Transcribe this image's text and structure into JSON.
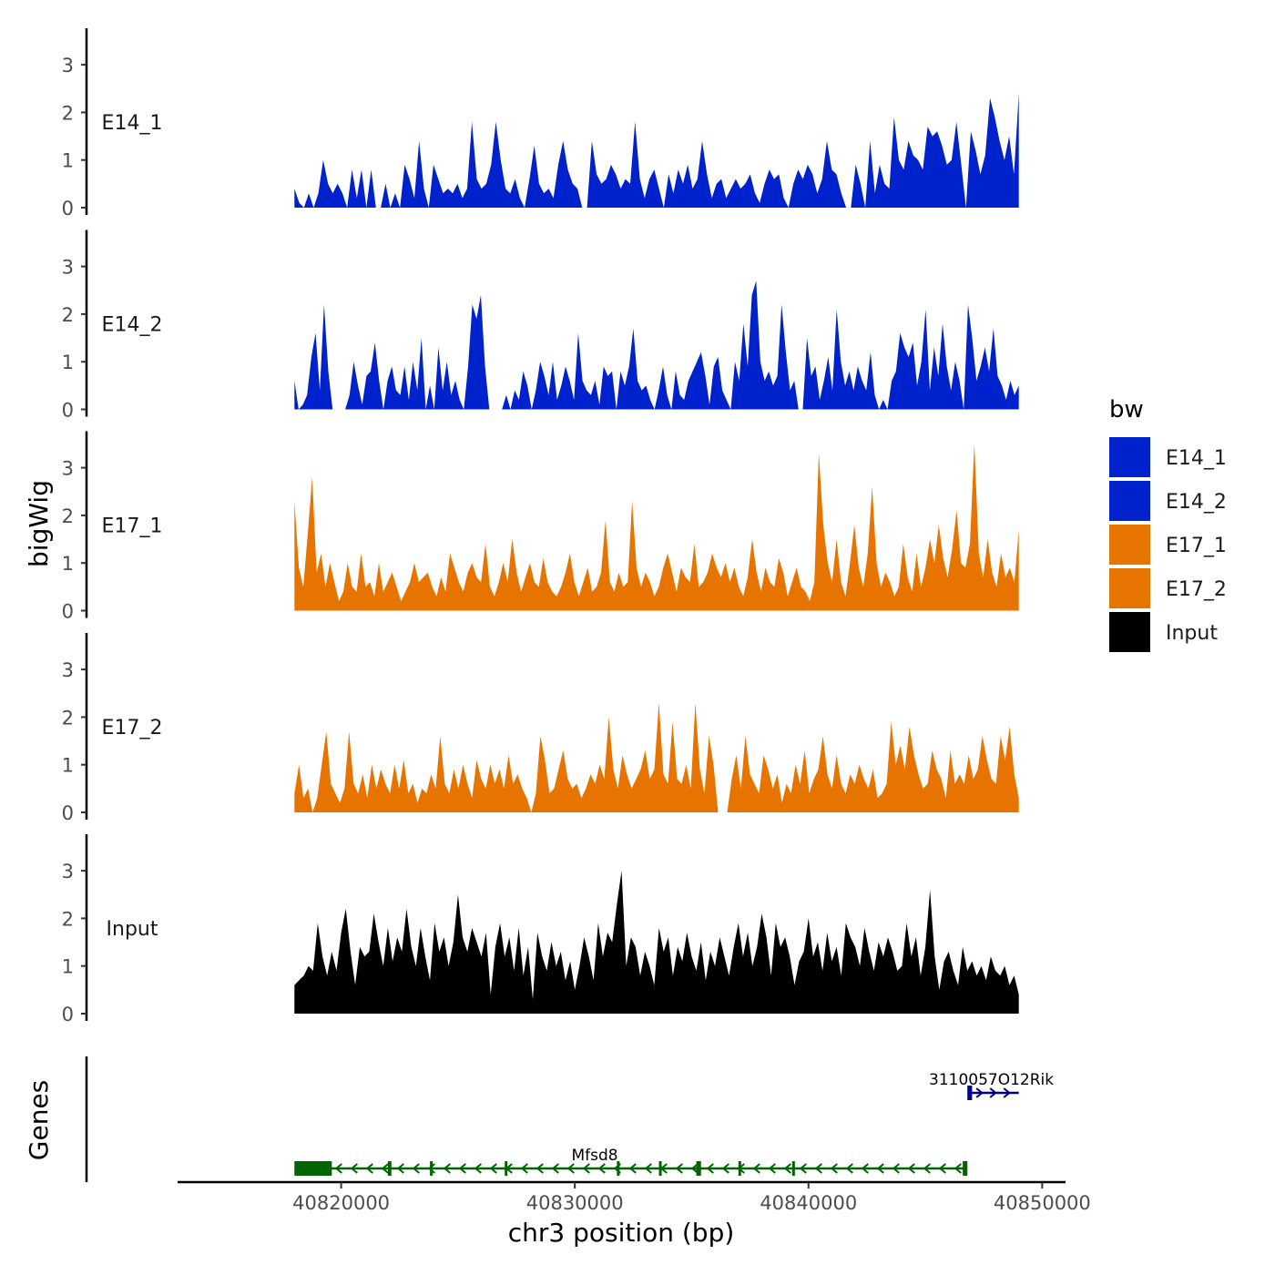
{
  "chart_data": {
    "type": "area",
    "chromosome": "chr3",
    "xlabel": "chr3 position (bp)",
    "ylabel": "bigWig",
    "genes_panel_label": "Genes",
    "xlim": [
      40813000,
      40851000
    ],
    "data_range": [
      40818000,
      40849000
    ],
    "ylim": [
      0,
      3.8
    ],
    "x_ticks": [
      {
        "value": 40820000,
        "label": "40820000"
      },
      {
        "value": 40830000,
        "label": "40830000"
      },
      {
        "value": 40840000,
        "label": "40840000"
      },
      {
        "value": 40850000,
        "label": "40850000"
      }
    ],
    "y_ticks": [
      {
        "value": 0,
        "label": "0"
      },
      {
        "value": 1,
        "label": "1"
      },
      {
        "value": 2,
        "label": "2"
      },
      {
        "value": 3,
        "label": "3"
      }
    ],
    "legend": {
      "title": "bw",
      "entries": [
        {
          "name": "E14_1",
          "color": "#0022CC"
        },
        {
          "name": "E14_2",
          "color": "#0022CC"
        },
        {
          "name": "E17_1",
          "color": "#E87400"
        },
        {
          "name": "E17_2",
          "color": "#E87400"
        },
        {
          "name": "Input",
          "color": "#000000"
        }
      ]
    },
    "series": [
      {
        "name": "E14_1",
        "color": "#0022CC",
        "baseline": 0.0,
        "values": [
          0.4,
          0.1,
          0.0,
          0.3,
          0.0,
          0.3,
          1.0,
          0.5,
          0.3,
          0.5,
          0.3,
          0.0,
          0.8,
          0.2,
          0.8,
          0.0,
          0.8,
          0.0,
          0.0,
          0.5,
          0.0,
          0.3,
          0.0,
          0.9,
          0.6,
          0.2,
          1.4,
          0.4,
          0.0,
          0.9,
          0.6,
          0.3,
          0.4,
          0.3,
          0.5,
          0.2,
          0.4,
          1.8,
          0.6,
          0.4,
          0.5,
          0.9,
          1.8,
          1.0,
          0.4,
          0.3,
          0.6,
          0.2,
          0.0,
          0.6,
          1.3,
          0.5,
          0.3,
          0.4,
          0.2,
          0.9,
          1.4,
          0.8,
          0.5,
          0.4,
          0.0,
          0.0,
          1.4,
          0.7,
          0.5,
          0.6,
          0.9,
          0.7,
          0.4,
          0.6,
          0.5,
          1.8,
          0.6,
          0.2,
          0.6,
          0.8,
          0.4,
          0.0,
          0.7,
          0.3,
          0.8,
          0.5,
          0.9,
          0.4,
          0.6,
          1.4,
          0.7,
          0.2,
          0.5,
          0.6,
          0.2,
          0.4,
          0.6,
          0.4,
          0.5,
          0.7,
          0.3,
          0.1,
          0.5,
          0.8,
          0.6,
          0.7,
          0.2,
          0.0,
          0.5,
          0.8,
          0.6,
          0.9,
          0.7,
          0.3,
          0.6,
          1.4,
          0.8,
          0.7,
          0.3,
          0.0,
          0.0,
          0.9,
          0.5,
          0.0,
          1.4,
          0.3,
          0.9,
          0.5,
          0.4,
          1.9,
          1.0,
          0.8,
          1.4,
          1.1,
          1.0,
          0.8,
          1.7,
          1.5,
          1.6,
          1.3,
          0.9,
          1.0,
          1.8,
          0.9,
          0.0,
          1.6,
          1.2,
          0.7,
          1.1,
          2.3,
          1.9,
          1.4,
          1.0,
          1.5,
          0.7,
          2.4
        ]
      },
      {
        "name": "E14_2",
        "color": "#0022CC",
        "baseline": 0.0,
        "values": [
          0.6,
          0.0,
          0.1,
          0.3,
          1.1,
          1.6,
          0.4,
          2.2,
          0.8,
          0.0,
          0.0,
          0.0,
          0.0,
          0.3,
          1.0,
          0.5,
          0.1,
          0.7,
          0.8,
          1.4,
          0.6,
          0.0,
          0.6,
          0.9,
          0.4,
          0.3,
          0.9,
          0.2,
          1.0,
          0.4,
          1.5,
          0.0,
          0.5,
          0.0,
          1.3,
          0.4,
          1.0,
          0.3,
          0.6,
          0.2,
          0.0,
          0.9,
          2.2,
          1.9,
          2.4,
          0.9,
          0.0,
          0.0,
          0.0,
          0.0,
          0.3,
          0.0,
          0.4,
          0.2,
          0.8,
          0.5,
          0.0,
          0.4,
          1.0,
          0.7,
          0.3,
          1.0,
          0.2,
          0.5,
          0.9,
          0.6,
          0.2,
          1.6,
          0.6,
          0.4,
          0.3,
          0.6,
          0.1,
          0.9,
          0.7,
          0.8,
          0.0,
          0.8,
          0.5,
          0.9,
          1.7,
          0.6,
          0.4,
          0.5,
          0.2,
          0.0,
          0.4,
          0.9,
          0.3,
          0.0,
          0.8,
          0.3,
          0.2,
          0.6,
          0.8,
          1.0,
          1.2,
          0.7,
          0.1,
          0.9,
          1.1,
          0.4,
          0.2,
          0.0,
          1.0,
          0.6,
          1.8,
          0.9,
          2.4,
          2.7,
          1.0,
          0.6,
          0.8,
          0.5,
          0.7,
          2.2,
          1.2,
          0.4,
          0.6,
          0.0,
          0.0,
          1.5,
          0.7,
          0.9,
          0.2,
          0.6,
          1.1,
          0.4,
          2.1,
          1.0,
          0.5,
          0.8,
          0.4,
          0.9,
          0.6,
          0.4,
          1.2,
          0.3,
          0.0,
          0.2,
          0.0,
          0.6,
          0.8,
          1.6,
          1.3,
          1.1,
          1.4,
          0.5,
          1.0,
          2.1,
          0.4,
          1.3,
          0.7,
          1.8,
          0.9,
          0.4,
          1.0,
          0.6,
          0.0,
          2.2,
          1.5,
          0.6,
          0.9,
          1.3,
          0.8,
          1.7,
          0.7,
          0.5,
          0.2,
          0.6,
          0.3,
          0.5
        ]
      },
      {
        "name": "E17_1",
        "color": "#E87400",
        "baseline": 0.0,
        "values": [
          2.3,
          0.9,
          0.5,
          1.6,
          2.8,
          0.8,
          1.2,
          0.5,
          1.0,
          0.6,
          0.2,
          0.4,
          1.0,
          0.5,
          0.4,
          1.2,
          0.5,
          0.6,
          0.3,
          1.0,
          0.4,
          0.6,
          0.8,
          0.5,
          0.2,
          0.4,
          0.6,
          1.0,
          0.6,
          0.7,
          0.8,
          0.5,
          0.3,
          0.7,
          0.4,
          1.2,
          0.9,
          0.6,
          0.4,
          0.8,
          1.0,
          0.7,
          0.6,
          1.4,
          0.5,
          0.3,
          0.6,
          1.0,
          0.6,
          1.5,
          0.8,
          0.4,
          0.7,
          1.0,
          0.6,
          0.5,
          1.1,
          0.6,
          0.4,
          0.3,
          0.5,
          0.8,
          1.2,
          0.6,
          0.3,
          0.6,
          0.9,
          0.4,
          0.5,
          0.8,
          1.9,
          0.6,
          0.4,
          0.8,
          0.5,
          0.6,
          2.3,
          0.9,
          0.5,
          0.8,
          0.6,
          0.3,
          0.5,
          0.9,
          1.2,
          0.8,
          0.4,
          0.9,
          0.7,
          0.6,
          1.4,
          0.5,
          0.6,
          0.8,
          1.2,
          0.9,
          0.7,
          1.0,
          0.6,
          0.9,
          0.5,
          0.3,
          0.7,
          1.5,
          0.8,
          0.4,
          0.9,
          0.6,
          0.5,
          1.1,
          0.8,
          0.3,
          0.6,
          0.9,
          0.5,
          0.4,
          0.2,
          0.6,
          3.3,
          1.8,
          1.0,
          0.6,
          1.5,
          0.6,
          0.3,
          1.0,
          1.8,
          0.9,
          0.5,
          1.2,
          2.6,
          1.0,
          0.5,
          0.8,
          0.6,
          0.3,
          0.5,
          1.4,
          0.7,
          0.4,
          1.2,
          0.5,
          0.9,
          1.5,
          1.0,
          1.8,
          1.1,
          0.7,
          1.3,
          2.1,
          1.0,
          0.9,
          1.4,
          3.5,
          1.2,
          0.7,
          1.5,
          0.8,
          0.5,
          1.2,
          0.7,
          0.9,
          0.6,
          1.7
        ]
      },
      {
        "name": "E17_2",
        "color": "#E87400",
        "baseline": 0.0,
        "values": [
          0.4,
          1.0,
          0.3,
          0.5,
          0.0,
          0.3,
          1.0,
          1.7,
          0.6,
          0.4,
          0.2,
          0.5,
          1.7,
          0.6,
          0.4,
          0.8,
          0.3,
          1.0,
          0.5,
          0.9,
          0.6,
          0.4,
          1.0,
          0.5,
          1.1,
          0.4,
          0.6,
          0.2,
          0.5,
          0.4,
          0.8,
          0.5,
          1.6,
          0.6,
          0.4,
          0.9,
          0.5,
          1.0,
          0.6,
          0.3,
          1.1,
          0.7,
          0.5,
          1.0,
          0.6,
          0.9,
          0.5,
          1.2,
          0.6,
          0.8,
          0.5,
          0.3,
          0.0,
          0.4,
          1.6,
          1.1,
          0.4,
          0.5,
          0.9,
          1.3,
          0.7,
          0.5,
          0.6,
          0.3,
          0.5,
          0.8,
          0.6,
          1.0,
          0.7,
          2.0,
          0.9,
          0.5,
          1.2,
          0.8,
          0.5,
          0.7,
          0.9,
          1.3,
          0.7,
          0.9,
          2.3,
          0.8,
          0.6,
          1.9,
          0.7,
          0.6,
          1.0,
          0.5,
          2.3,
          0.9,
          0.4,
          1.6,
          1.0,
          0.0,
          0.0,
          0.0,
          0.7,
          1.2,
          0.5,
          1.6,
          0.8,
          0.6,
          0.4,
          1.2,
          0.9,
          0.5,
          0.8,
          0.2,
          0.6,
          0.4,
          1.0,
          0.6,
          1.3,
          0.4,
          0.7,
          0.9,
          1.6,
          0.8,
          0.5,
          1.2,
          0.6,
          0.4,
          0.8,
          0.6,
          1.0,
          0.7,
          0.5,
          0.9,
          0.3,
          0.4,
          0.6,
          1.9,
          1.0,
          1.4,
          0.9,
          1.8,
          1.2,
          0.8,
          0.5,
          0.6,
          1.3,
          0.9,
          0.7,
          0.3,
          1.3,
          0.6,
          0.8,
          0.6,
          1.2,
          0.7,
          0.9,
          1.6,
          1.1,
          0.7,
          0.6,
          1.6,
          1.1,
          1.8,
          0.8,
          0.3
        ]
      },
      {
        "name": "Input",
        "color": "#000000",
        "baseline": 0.0,
        "values": [
          0.6,
          0.7,
          0.8,
          1.0,
          0.9,
          1.9,
          1.2,
          0.8,
          1.3,
          0.9,
          1.7,
          2.2,
          1.3,
          0.6,
          1.4,
          1.2,
          1.3,
          2.1,
          1.5,
          1.0,
          1.8,
          1.1,
          1.6,
          1.3,
          2.2,
          1.4,
          1.0,
          1.8,
          1.2,
          0.7,
          1.9,
          1.3,
          1.6,
          1.0,
          1.5,
          2.5,
          1.6,
          1.3,
          1.8,
          1.5,
          1.2,
          1.7,
          0.4,
          1.4,
          1.9,
          1.2,
          1.6,
          0.9,
          1.8,
          0.8,
          1.4,
          0.3,
          1.7,
          1.2,
          0.9,
          1.5,
          1.0,
          1.3,
          0.7,
          1.1,
          0.5,
          1.0,
          1.6,
          1.2,
          0.7,
          1.9,
          1.2,
          1.7,
          1.5,
          2.3,
          3.0,
          1.0,
          1.6,
          1.4,
          0.8,
          1.3,
          1.0,
          0.6,
          1.8,
          1.3,
          1.6,
          0.8,
          1.4,
          1.1,
          1.7,
          1.2,
          0.9,
          1.5,
          0.7,
          1.3,
          1.0,
          1.6,
          1.2,
          0.8,
          1.4,
          1.9,
          1.2,
          1.7,
          1.0,
          1.4,
          2.1,
          1.6,
          0.8,
          1.9,
          1.4,
          1.6,
          1.2,
          0.6,
          1.1,
          1.3,
          2.0,
          1.2,
          1.5,
          0.9,
          1.7,
          1.1,
          1.4,
          0.8,
          1.9,
          1.6,
          1.4,
          1.0,
          1.8,
          1.3,
          0.9,
          1.5,
          1.2,
          1.6,
          1.3,
          0.9,
          1.0,
          1.9,
          1.2,
          1.6,
          0.8,
          1.4,
          2.6,
          1.2,
          0.5,
          1.1,
          1.3,
          0.9,
          0.6,
          1.4,
          0.9,
          1.1,
          0.8,
          1.0,
          0.7,
          1.2,
          0.9,
          0.8,
          1.0,
          0.6,
          0.8,
          0.4
        ]
      }
    ],
    "genes": [
      {
        "name": "Mfsd8",
        "color": "#006400",
        "strand": "-",
        "start": 40818000,
        "end": 40846800,
        "exons": [
          [
            40818000,
            40819600
          ],
          [
            40822000,
            40822150
          ],
          [
            40823800,
            40823900
          ],
          [
            40827000,
            40827100
          ],
          [
            40831800,
            40831900
          ],
          [
            40833600,
            40833700
          ],
          [
            40835200,
            40835400
          ],
          [
            40837000,
            40837080
          ],
          [
            40839300,
            40839400
          ],
          [
            40846600,
            40846800
          ]
        ]
      },
      {
        "name": "3110057O12Rik",
        "color": "#000080",
        "strand": "+",
        "start": 40846800,
        "end": 40849000,
        "exons": [
          [
            40846800,
            40847000
          ]
        ]
      }
    ]
  }
}
